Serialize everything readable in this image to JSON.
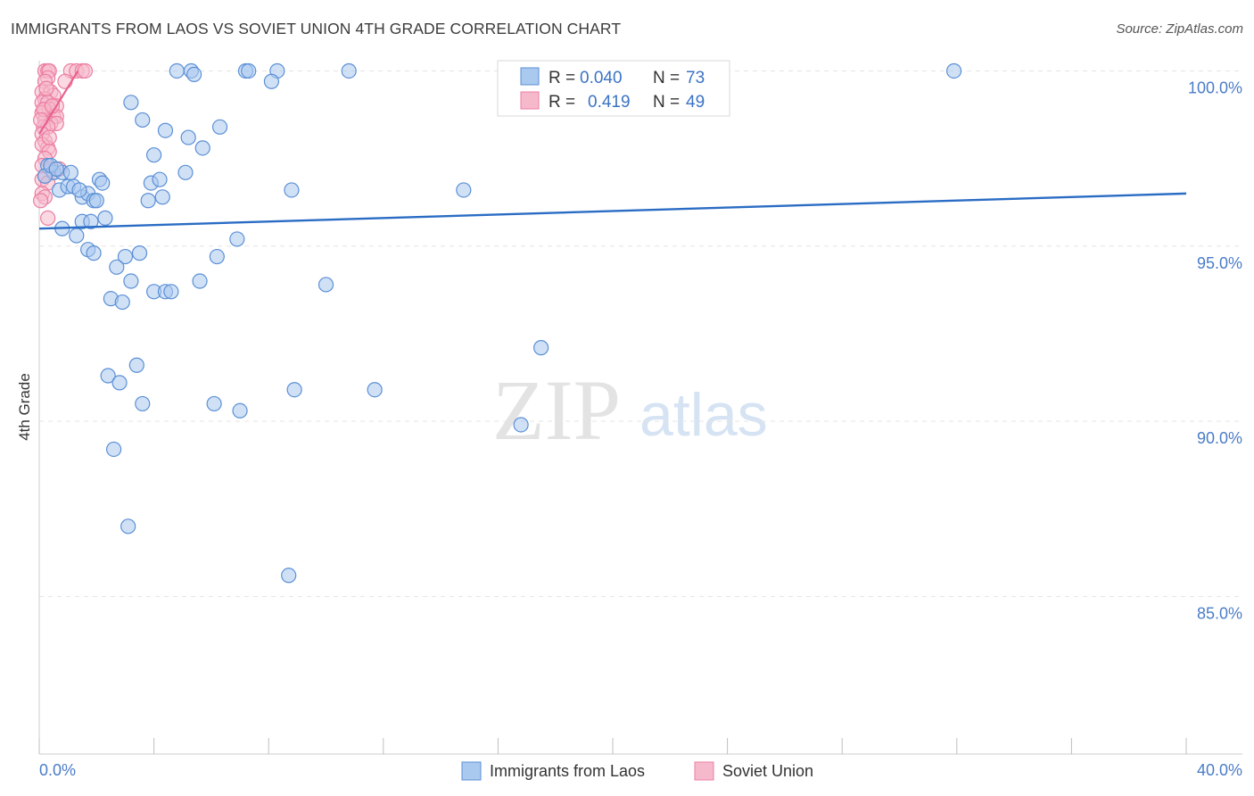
{
  "title": "IMMIGRANTS FROM LAOS VS SOVIET UNION 4TH GRADE CORRELATION CHART",
  "source": "Source: ZipAtlas.com",
  "watermark": {
    "zip": "ZIP",
    "atlas": "atlas"
  },
  "colors": {
    "blue_fill": "#a9c9ef",
    "blue_stroke": "#5b8fd6",
    "blue_line": "#2a6cc4",
    "pink_fill": "#f6b9cc",
    "pink_stroke": "#ec7ea1",
    "pink_line": "#e8628f",
    "grid": "#e4e4e4",
    "tick_label": "#4a7cc7"
  },
  "legend": {
    "rows": [
      {
        "r_label": "R =",
        "r_value": "0.040",
        "n_label": "N =",
        "n_value": "73"
      },
      {
        "r_label": "R =",
        "r_value": "0.419",
        "n_label": "N =",
        "n_value": "49"
      }
    ]
  },
  "chart_data": {
    "type": "scatter",
    "title": "IMMIGRANTS FROM LAOS VS SOVIET UNION 4TH GRADE CORRELATION CHART",
    "xlabel": "",
    "ylabel": "4th Grade",
    "xlim": [
      0,
      40
    ],
    "ylim": [
      80.5,
      100.7
    ],
    "x_tick_labels": [
      "0.0%",
      "40.0%"
    ],
    "y_ticks": [
      85,
      90,
      95,
      100
    ],
    "y_tick_labels": [
      "85.0%",
      "90.0%",
      "95.0%",
      "100.0%"
    ],
    "grid": "horizontal dashed",
    "legend_position": "top-center",
    "series": [
      {
        "name": "Immigrants from Laos",
        "color": "#a9c9ef",
        "r": 0.04,
        "n": 73,
        "trend": {
          "x": [
            0,
            40
          ],
          "y": [
            95.5,
            96.5
          ]
        },
        "points": [
          [
            4.8,
            100
          ],
          [
            5.3,
            100
          ],
          [
            5.4,
            99.9
          ],
          [
            7.2,
            100
          ],
          [
            7.3,
            100
          ],
          [
            8.3,
            100
          ],
          [
            10.8,
            100
          ],
          [
            31.9,
            100
          ],
          [
            8.1,
            99.7
          ],
          [
            3.2,
            99.1
          ],
          [
            3.6,
            98.6
          ],
          [
            4.4,
            98.3
          ],
          [
            6.3,
            98.4
          ],
          [
            5.2,
            98.1
          ],
          [
            5.7,
            97.8
          ],
          [
            4.0,
            97.6
          ],
          [
            0.3,
            97.3
          ],
          [
            0.5,
            97.1
          ],
          [
            0.8,
            97.1
          ],
          [
            1.1,
            97.1
          ],
          [
            0.2,
            97.0
          ],
          [
            5.1,
            97.1
          ],
          [
            2.1,
            96.9
          ],
          [
            2.2,
            96.8
          ],
          [
            3.9,
            96.8
          ],
          [
            0.7,
            96.6
          ],
          [
            1.0,
            96.7
          ],
          [
            1.2,
            96.7
          ],
          [
            1.5,
            96.4
          ],
          [
            1.7,
            96.5
          ],
          [
            1.9,
            96.3
          ],
          [
            3.8,
            96.3
          ],
          [
            4.3,
            96.4
          ],
          [
            8.8,
            96.6
          ],
          [
            14.8,
            96.6
          ],
          [
            1.5,
            95.7
          ],
          [
            1.8,
            95.7
          ],
          [
            2.3,
            95.8
          ],
          [
            0.8,
            95.5
          ],
          [
            1.3,
            95.3
          ],
          [
            6.9,
            95.2
          ],
          [
            1.7,
            94.9
          ],
          [
            1.9,
            94.8
          ],
          [
            3.0,
            94.7
          ],
          [
            3.5,
            94.8
          ],
          [
            6.2,
            94.7
          ],
          [
            2.7,
            94.4
          ],
          [
            3.2,
            94.0
          ],
          [
            5.6,
            94.0
          ],
          [
            10.0,
            93.9
          ],
          [
            4.0,
            93.7
          ],
          [
            4.4,
            93.7
          ],
          [
            4.6,
            93.7
          ],
          [
            2.5,
            93.5
          ],
          [
            2.9,
            93.4
          ],
          [
            17.5,
            92.1
          ],
          [
            3.4,
            91.6
          ],
          [
            2.4,
            91.3
          ],
          [
            2.8,
            91.1
          ],
          [
            8.9,
            90.9
          ],
          [
            11.7,
            90.9
          ],
          [
            3.6,
            90.5
          ],
          [
            6.1,
            90.5
          ],
          [
            7.0,
            90.3
          ],
          [
            16.8,
            89.9
          ],
          [
            2.6,
            89.2
          ],
          [
            3.1,
            87.0
          ],
          [
            8.7,
            85.6
          ],
          [
            0.4,
            97.3
          ],
          [
            0.6,
            97.2
          ],
          [
            1.4,
            96.6
          ],
          [
            2.0,
            96.3
          ],
          [
            4.2,
            96.9
          ]
        ]
      },
      {
        "name": "Soviet Union",
        "color": "#f6b9cc",
        "r": 0.419,
        "n": 49,
        "trend": {
          "x": [
            0,
            1.35
          ],
          "y": [
            98.2,
            100.0
          ]
        },
        "points": [
          [
            0.2,
            100
          ],
          [
            0.3,
            100
          ],
          [
            0.35,
            100
          ],
          [
            1.1,
            100
          ],
          [
            1.3,
            100
          ],
          [
            1.5,
            100
          ],
          [
            1.6,
            100
          ],
          [
            0.3,
            99.8
          ],
          [
            0.2,
            99.7
          ],
          [
            0.9,
            99.7
          ],
          [
            0.1,
            99.4
          ],
          [
            0.4,
            99.4
          ],
          [
            0.5,
            99.3
          ],
          [
            0.2,
            99.2
          ],
          [
            0.1,
            99.1
          ],
          [
            0.3,
            99.1
          ],
          [
            0.6,
            99.0
          ],
          [
            0.2,
            98.9
          ],
          [
            0.35,
            98.9
          ],
          [
            0.1,
            98.8
          ],
          [
            0.5,
            98.7
          ],
          [
            0.6,
            98.7
          ],
          [
            0.2,
            98.6
          ],
          [
            0.4,
            98.5
          ],
          [
            0.6,
            98.5
          ],
          [
            0.15,
            98.4
          ],
          [
            0.3,
            98.4
          ],
          [
            0.1,
            98.2
          ],
          [
            0.2,
            98.0
          ],
          [
            0.3,
            97.8
          ],
          [
            0.1,
            97.9
          ],
          [
            0.35,
            97.7
          ],
          [
            0.2,
            97.5
          ],
          [
            0.1,
            97.3
          ],
          [
            0.4,
            97.2
          ],
          [
            0.5,
            97.1
          ],
          [
            0.7,
            97.2
          ],
          [
            0.2,
            97.0
          ],
          [
            0.1,
            96.9
          ],
          [
            0.3,
            96.8
          ],
          [
            0.1,
            96.5
          ],
          [
            0.2,
            96.4
          ],
          [
            0.05,
            96.3
          ],
          [
            0.3,
            95.8
          ],
          [
            0.15,
            98.9
          ],
          [
            0.25,
            99.5
          ],
          [
            0.45,
            99.0
          ],
          [
            0.05,
            98.6
          ],
          [
            0.35,
            98.1
          ]
        ]
      }
    ]
  }
}
